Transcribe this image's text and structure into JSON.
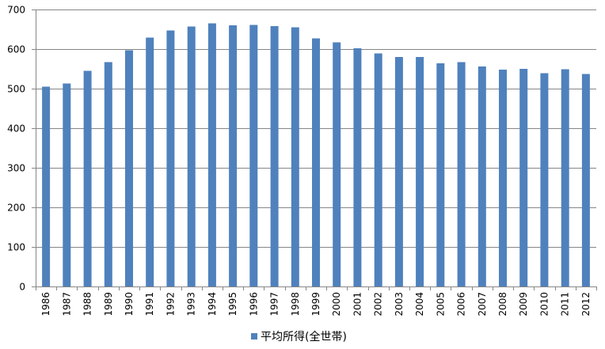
{
  "chart_data": {
    "type": "bar",
    "categories": [
      "1986",
      "1987",
      "1988",
      "1989",
      "1990",
      "1991",
      "1992",
      "1993",
      "1994",
      "1995",
      "1996",
      "1997",
      "1998",
      "1999",
      "2000",
      "2001",
      "2002",
      "2003",
      "2004",
      "2005",
      "2006",
      "2007",
      "2008",
      "2009",
      "2010",
      "2011",
      "2012"
    ],
    "series": [
      {
        "name": "平均所得(全世帯)",
        "values": [
          505,
          513,
          545,
          567,
          597,
          629,
          647,
          657,
          665,
          660,
          661,
          658,
          655,
          627,
          617,
          602,
          589,
          580,
          580,
          564,
          567,
          556,
          548,
          550,
          539,
          549,
          537
        ],
        "color": "#4F81BD"
      }
    ],
    "title": "",
    "xlabel": "",
    "ylabel": "",
    "ylim": [
      0,
      700
    ],
    "yticks": [
      0,
      100,
      200,
      300,
      400,
      500,
      600,
      700
    ],
    "grid": true,
    "legend_position": "bottom"
  }
}
